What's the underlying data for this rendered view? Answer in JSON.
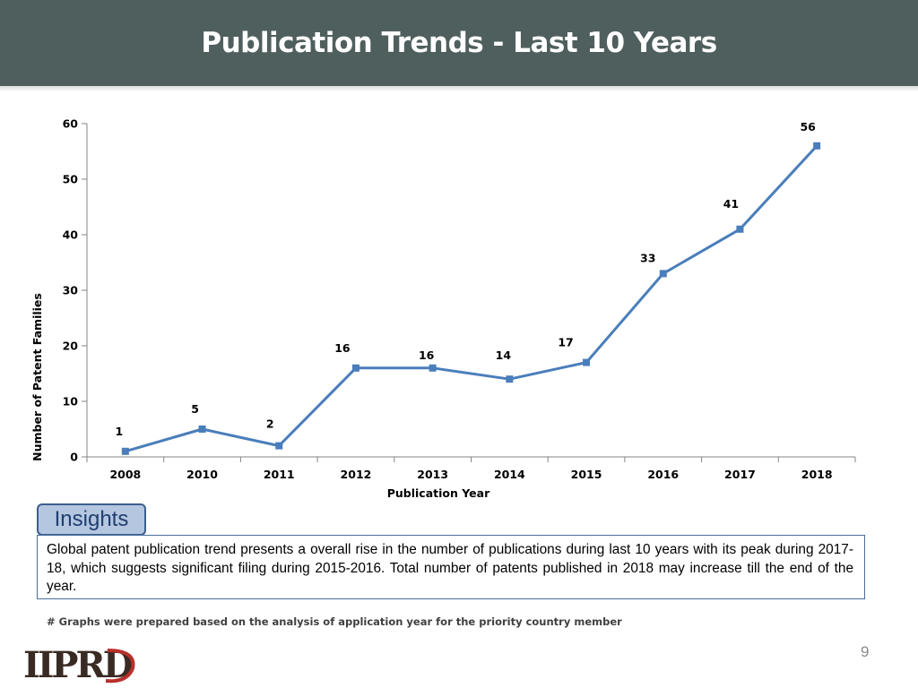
{
  "header": {
    "title": "Publication Trends - Last 10 Years"
  },
  "chart_data": {
    "type": "line",
    "title": "",
    "xlabel": "Publication Year",
    "ylabel": "Number of Patent Families",
    "categories": [
      "2008",
      "2010",
      "2011",
      "2012",
      "2013",
      "2014",
      "2015",
      "2016",
      "2017",
      "2018"
    ],
    "values": [
      1,
      5,
      2,
      16,
      16,
      14,
      17,
      33,
      41,
      56
    ],
    "ylim": [
      0,
      60
    ],
    "yticks": [
      0,
      10,
      20,
      30,
      40,
      50,
      60
    ],
    "grid": false,
    "legend": "none",
    "data_labels": true,
    "line_color": "#4a7ebb",
    "marker": "square"
  },
  "insights": {
    "label": "Insights",
    "text": "Global patent publication trend presents a overall rise in the number of publications during last 10 years with its peak during 2017-18, which suggests significant filing during 2015-2016. Total number of patents published in 2018 may increase till the end of the year."
  },
  "footnote": "# Graphs were prepared based on the analysis of application year for  the priority country member",
  "page_number": "9",
  "logo": {
    "text": "IIPRD",
    "icon": "iiprd-logo"
  }
}
